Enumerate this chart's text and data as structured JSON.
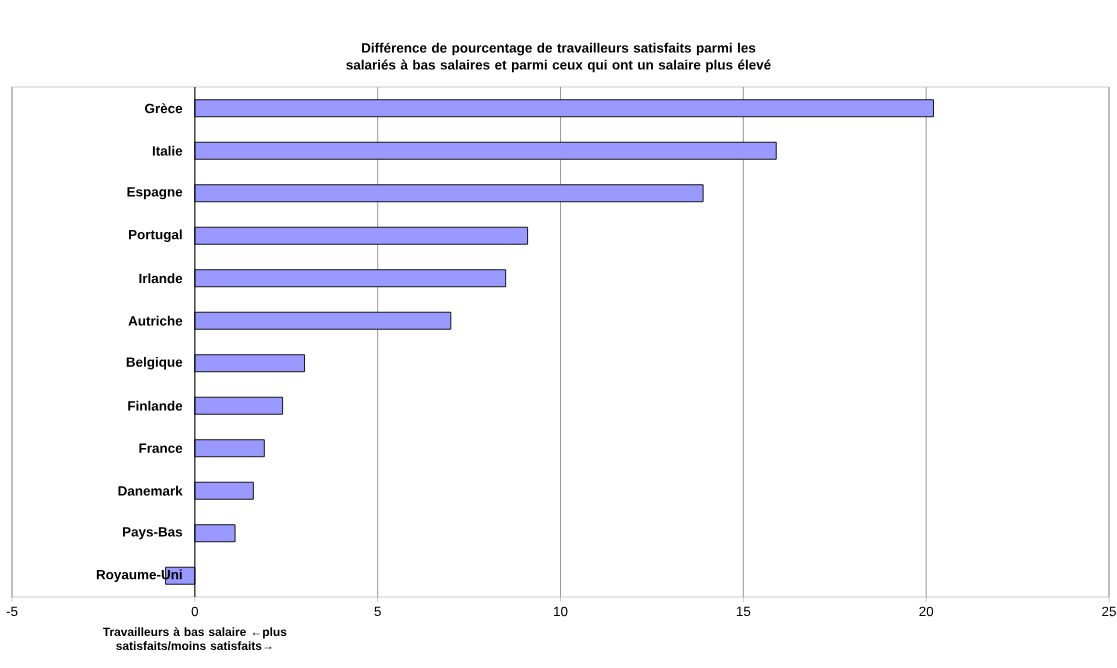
{
  "chart_data": {
    "type": "bar",
    "orientation": "horizontal",
    "title": "Différence de pourcentage de travailleurs satisfaits parmi les salariés à bas salaires et parmi ceux qui ont un salaire plus élevé",
    "xlabel": "Travailleurs à bas salaire ←plus satisfaits/moins satisfaits→",
    "categories": [
      "Grèce",
      "Italie",
      "Espagne",
      "Portugal",
      "Irlande",
      "Autriche",
      "Belgique",
      "Finlande",
      "France",
      "Danemark",
      "Pays-Bas",
      "Royaume-Uni"
    ],
    "values": [
      20.2,
      15.9,
      13.9,
      9.1,
      8.5,
      7.0,
      3.0,
      2.4,
      1.9,
      1.6,
      1.1,
      -0.8
    ],
    "color": "#9999ff",
    "xlim": [
      -5,
      25
    ],
    "xticks": [
      -5,
      0,
      5,
      10,
      15,
      20,
      25
    ],
    "grid": "x"
  }
}
